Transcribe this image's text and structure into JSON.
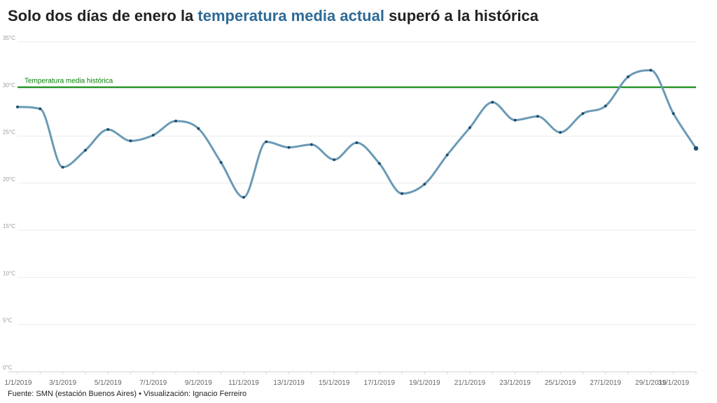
{
  "title": {
    "part1": "Solo dos días de enero la ",
    "highlight": "temperatura media actual",
    "part2": " superó a la histórica",
    "highlight_color": "#2d6a96"
  },
  "footer": "Fuente: SMN (estación Buenos Aires) • Visualización: Ignacio Ferreiro",
  "chart_data": {
    "type": "line",
    "x": [
      "1/1/2019",
      "2/1/2019",
      "3/1/2019",
      "4/1/2019",
      "5/1/2019",
      "6/1/2019",
      "7/1/2019",
      "8/1/2019",
      "9/1/2019",
      "10/1/2019",
      "11/1/2019",
      "12/1/2019",
      "13/1/2019",
      "14/1/2019",
      "15/1/2019",
      "16/1/2019",
      "17/1/2019",
      "18/1/2019",
      "19/1/2019",
      "20/1/2019",
      "21/1/2019",
      "22/1/2019",
      "23/1/2019",
      "24/1/2019",
      "25/1/2019",
      "26/1/2019",
      "27/1/2019",
      "28/1/2019",
      "29/1/2019",
      "30/1/2019",
      "31/1/2019"
    ],
    "xticks": [
      "1/1/2019",
      "3/1/2019",
      "5/1/2019",
      "7/1/2019",
      "9/1/2019",
      "11/1/2019",
      "13/1/2019",
      "15/1/2019",
      "17/1/2019",
      "19/1/2019",
      "21/1/2019",
      "23/1/2019",
      "25/1/2019",
      "27/1/2019",
      "29/1/2019",
      "31/1/2019"
    ],
    "series": [
      {
        "color": "#6a9ab5",
        "values": [
          28.1,
          27.9,
          21.7,
          23.5,
          25.7,
          24.5,
          25.1,
          26.6,
          25.8,
          22.2,
          18.5,
          24.4,
          23.8,
          24.1,
          22.5,
          24.3,
          22.1,
          18.9,
          19.9,
          23.0,
          25.9,
          28.6,
          26.7,
          27.1,
          25.4,
          27.4,
          28.2,
          31.3,
          32.0,
          27.4,
          23.7
        ]
      }
    ],
    "reference_line": {
      "value": 30.2,
      "label": "Temperatura media histórica",
      "color": "#008000"
    },
    "yticks": [
      "0°C",
      "5°C",
      "10°C",
      "15°C",
      "20°C",
      "25°C",
      "30°C",
      "35°C"
    ],
    "ylim": [
      0,
      35
    ],
    "grid": true,
    "point_color": "#1f4e6d"
  }
}
